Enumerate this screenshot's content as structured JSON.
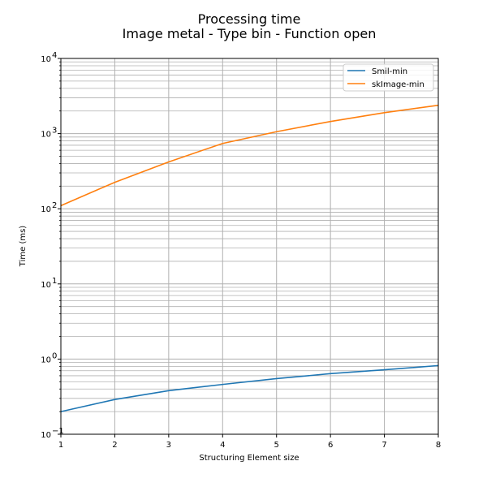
{
  "chart_data": {
    "type": "line",
    "title": "Processing time",
    "subtitle": "Image metal - Type bin - Function open",
    "xlabel": "Structuring Element size",
    "ylabel": "Time (ms)",
    "x": [
      1,
      2,
      3,
      4,
      5,
      6,
      7,
      8
    ],
    "xlim": [
      1,
      8
    ],
    "ylim": [
      0.1,
      10000
    ],
    "yscale": "log",
    "grid": true,
    "legend_position": "top-right",
    "x_tick_labels": [
      "1",
      "2",
      "3",
      "4",
      "5",
      "6",
      "7",
      "8"
    ],
    "y_tick_labels": [
      {
        "base": "10",
        "exp": "−1"
      },
      {
        "base": "10",
        "exp": "0"
      },
      {
        "base": "10",
        "exp": "1"
      },
      {
        "base": "10",
        "exp": "2"
      },
      {
        "base": "10",
        "exp": "3"
      },
      {
        "base": "10",
        "exp": "4"
      }
    ],
    "series": [
      {
        "name": "Smil-min",
        "color": "#1f77b4",
        "values": [
          0.2,
          0.29,
          0.38,
          0.46,
          0.55,
          0.64,
          0.72,
          0.82
        ]
      },
      {
        "name": "skImage-min",
        "color": "#ff7f0e",
        "values": [
          110,
          225,
          420,
          740,
          1060,
          1450,
          1900,
          2380
        ]
      }
    ]
  }
}
